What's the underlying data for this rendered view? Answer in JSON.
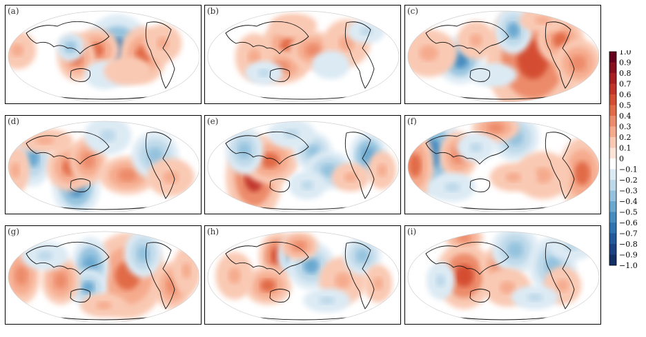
{
  "chart_data": {
    "type": "heatmap",
    "projection": "global map",
    "panels": [
      {
        "label": "(a)",
        "blobs": [
          [
            0.57,
            0.45,
            0.07,
            0.15,
            -0.65
          ],
          [
            0.46,
            0.45,
            0.05,
            0.09,
            0.45
          ],
          [
            0.7,
            0.5,
            0.05,
            0.12,
            0.45
          ],
          [
            0.36,
            0.52,
            0.04,
            0.1,
            0.45
          ],
          [
            0.33,
            0.42,
            0.03,
            0.06,
            -0.35
          ],
          [
            0.06,
            0.45,
            0.04,
            0.08,
            0.3
          ],
          [
            0.8,
            0.38,
            0.04,
            0.08,
            0.25
          ],
          [
            0.5,
            0.7,
            0.04,
            0.06,
            -0.2
          ],
          [
            0.62,
            0.66,
            0.05,
            0.06,
            0.2
          ]
        ]
      },
      {
        "label": "(b)",
        "blobs": [
          [
            0.43,
            0.42,
            0.06,
            0.12,
            0.45
          ],
          [
            0.38,
            0.62,
            0.06,
            0.07,
            0.4
          ],
          [
            0.55,
            0.45,
            0.05,
            0.08,
            0.35
          ],
          [
            0.25,
            0.52,
            0.04,
            0.1,
            0.3
          ],
          [
            0.3,
            0.68,
            0.04,
            0.05,
            -0.25
          ],
          [
            0.72,
            0.38,
            0.05,
            0.1,
            0.25
          ],
          [
            0.64,
            0.6,
            0.04,
            0.06,
            -0.2
          ],
          [
            0.45,
            0.2,
            0.05,
            0.05,
            0.2
          ],
          [
            0.82,
            0.26,
            0.04,
            0.05,
            -0.25
          ]
        ]
      },
      {
        "label": "(c)",
        "blobs": [
          [
            0.65,
            0.54,
            0.1,
            0.25,
            0.55
          ],
          [
            0.28,
            0.55,
            0.05,
            0.1,
            -0.6
          ],
          [
            0.55,
            0.25,
            0.04,
            0.1,
            -0.45
          ],
          [
            0.79,
            0.35,
            0.05,
            0.1,
            0.45
          ],
          [
            0.88,
            0.58,
            0.05,
            0.1,
            0.35
          ],
          [
            0.12,
            0.48,
            0.06,
            0.1,
            0.3
          ],
          [
            0.36,
            0.35,
            0.04,
            0.08,
            0.3
          ],
          [
            0.45,
            0.7,
            0.05,
            0.05,
            -0.2
          ],
          [
            0.7,
            0.15,
            0.05,
            0.05,
            0.3
          ]
        ]
      },
      {
        "label": "(d)",
        "blobs": [
          [
            0.36,
            0.72,
            0.05,
            0.12,
            -0.55
          ],
          [
            0.14,
            0.42,
            0.04,
            0.12,
            -0.45
          ],
          [
            0.33,
            0.52,
            0.05,
            0.1,
            0.45
          ],
          [
            0.42,
            0.45,
            0.04,
            0.1,
            0.35
          ],
          [
            0.62,
            0.6,
            0.06,
            0.08,
            0.35
          ],
          [
            0.52,
            0.2,
            0.05,
            0.08,
            -0.3
          ],
          [
            0.76,
            0.4,
            0.05,
            0.1,
            -0.35
          ],
          [
            0.84,
            0.62,
            0.05,
            0.08,
            0.3
          ],
          [
            0.2,
            0.25,
            0.06,
            0.05,
            0.3
          ],
          [
            0.05,
            0.55,
            0.03,
            0.1,
            0.3
          ]
        ]
      },
      {
        "label": "(e)",
        "blobs": [
          [
            0.25,
            0.62,
            0.06,
            0.18,
            0.65
          ],
          [
            0.33,
            0.45,
            0.06,
            0.1,
            0.45
          ],
          [
            0.55,
            0.36,
            0.04,
            0.08,
            -0.4
          ],
          [
            0.83,
            0.4,
            0.04,
            0.1,
            -0.5
          ],
          [
            0.2,
            0.35,
            0.04,
            0.1,
            -0.35
          ],
          [
            0.63,
            0.55,
            0.05,
            0.08,
            -0.35
          ],
          [
            0.74,
            0.62,
            0.04,
            0.06,
            0.3
          ],
          [
            0.52,
            0.7,
            0.04,
            0.06,
            -0.3
          ],
          [
            0.9,
            0.55,
            0.03,
            0.08,
            0.25
          ],
          [
            0.44,
            0.18,
            0.05,
            0.06,
            -0.3
          ]
        ]
      },
      {
        "label": "(f)",
        "blobs": [
          [
            0.14,
            0.38,
            0.06,
            0.18,
            -0.55
          ],
          [
            0.05,
            0.5,
            0.04,
            0.15,
            0.45
          ],
          [
            0.27,
            0.4,
            0.04,
            0.1,
            0.35
          ],
          [
            0.56,
            0.22,
            0.05,
            0.1,
            -0.35
          ],
          [
            0.46,
            0.12,
            0.05,
            0.06,
            0.4
          ],
          [
            0.9,
            0.58,
            0.05,
            0.15,
            0.45
          ],
          [
            0.7,
            0.6,
            0.06,
            0.1,
            0.3
          ],
          [
            0.55,
            0.62,
            0.05,
            0.06,
            0.25
          ],
          [
            0.36,
            0.32,
            0.04,
            0.06,
            -0.3
          ],
          [
            0.24,
            0.72,
            0.05,
            0.06,
            -0.3
          ]
        ]
      },
      {
        "label": "(g)",
        "blobs": [
          [
            0.62,
            0.5,
            0.08,
            0.18,
            0.45
          ],
          [
            0.43,
            0.4,
            0.04,
            0.12,
            -0.5
          ],
          [
            0.7,
            0.28,
            0.04,
            0.1,
            -0.4
          ],
          [
            0.42,
            0.62,
            0.04,
            0.08,
            -0.45
          ],
          [
            0.28,
            0.55,
            0.04,
            0.1,
            0.35
          ],
          [
            0.85,
            0.6,
            0.04,
            0.1,
            0.35
          ],
          [
            0.08,
            0.5,
            0.04,
            0.12,
            0.35
          ],
          [
            0.2,
            0.3,
            0.05,
            0.06,
            -0.3
          ],
          [
            0.5,
            0.8,
            0.05,
            0.05,
            0.3
          ],
          [
            0.92,
            0.45,
            0.03,
            0.1,
            0.3
          ]
        ]
      },
      {
        "label": "(h)",
        "blobs": [
          [
            0.37,
            0.3,
            0.04,
            0.1,
            0.55
          ],
          [
            0.44,
            0.3,
            0.03,
            0.08,
            -0.45
          ],
          [
            0.32,
            0.6,
            0.05,
            0.08,
            0.45
          ],
          [
            0.54,
            0.4,
            0.05,
            0.1,
            -0.45
          ],
          [
            0.48,
            0.2,
            0.04,
            0.06,
            0.35
          ],
          [
            0.7,
            0.55,
            0.05,
            0.1,
            0.3
          ],
          [
            0.8,
            0.3,
            0.04,
            0.08,
            -0.35
          ],
          [
            0.15,
            0.5,
            0.04,
            0.1,
            0.3
          ],
          [
            0.62,
            0.75,
            0.05,
            0.05,
            -0.3
          ],
          [
            0.88,
            0.58,
            0.03,
            0.08,
            0.25
          ]
        ]
      },
      {
        "label": "(i)",
        "blobs": [
          [
            0.3,
            0.5,
            0.06,
            0.14,
            0.6
          ],
          [
            0.48,
            0.4,
            0.04,
            0.08,
            0.35
          ],
          [
            0.56,
            0.24,
            0.05,
            0.1,
            -0.4
          ],
          [
            0.75,
            0.4,
            0.05,
            0.12,
            -0.4
          ],
          [
            0.3,
            0.12,
            0.04,
            0.05,
            0.4
          ],
          [
            0.52,
            0.62,
            0.05,
            0.08,
            0.3
          ],
          [
            0.8,
            0.6,
            0.04,
            0.08,
            0.3
          ],
          [
            0.85,
            0.2,
            0.05,
            0.06,
            -0.3
          ],
          [
            0.18,
            0.55,
            0.03,
            0.08,
            -0.25
          ],
          [
            0.66,
            0.72,
            0.05,
            0.05,
            -0.25
          ]
        ]
      }
    ],
    "blob_fields": [
      "x_frac",
      "y_frac",
      "x_spread_frac",
      "y_spread_frac",
      "value"
    ],
    "colorbar": {
      "ticks": [
        "1.0",
        "0.9",
        "0.8",
        "0.7",
        "0.6",
        "0.5",
        "0.4",
        "0.3",
        "0.2",
        "0.1",
        "0",
        "−0.1",
        "−0.2",
        "−0.3",
        "−0.4",
        "−0.5",
        "−0.6",
        "−0.7",
        "−0.8",
        "−0.9",
        "−1.0"
      ],
      "range": [
        -1.0,
        1.0
      ],
      "colors": [
        "#67001f",
        "#89101f",
        "#a82022",
        "#c1342a",
        "#d44e33",
        "#e16a47",
        "#ec8b6b",
        "#f5aa8d",
        "#f9c9b3",
        "#fde4d8",
        "#ffffff",
        "#dceaf4",
        "#bcd8e9",
        "#94c2de",
        "#6aa8d0",
        "#468cc0",
        "#2f73b0",
        "#21599b",
        "#1c4283",
        "#122f66"
      ]
    }
  }
}
